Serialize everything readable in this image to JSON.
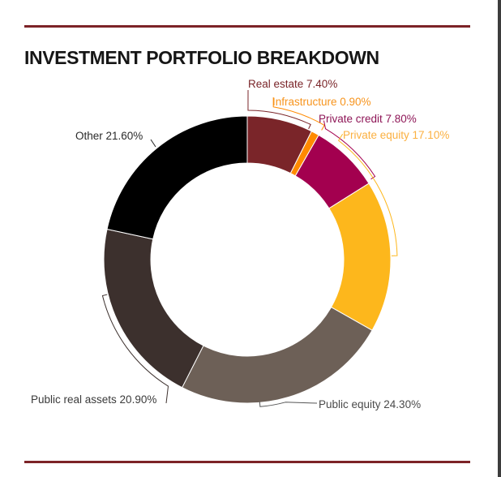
{
  "title": "INVESTMENT PORTFOLIO BREAKDOWN",
  "chart_data": {
    "type": "pie",
    "subtype": "donut",
    "title": "INVESTMENT PORTFOLIO BREAKDOWN",
    "unit": "%",
    "slices": [
      {
        "label": "Real estate",
        "value": 7.4,
        "text": "Real estate 7.40%",
        "color": "#7a2529",
        "label_color": "#7a2529"
      },
      {
        "label": "Infrastructure",
        "value": 0.9,
        "text": "Infrastructure 0.90%",
        "color": "#ff8a00",
        "label_color": "#f7941d"
      },
      {
        "label": "Private credit",
        "value": 7.8,
        "text": "Private credit 7.80%",
        "color": "#a3004f",
        "label_color": "#8e1657"
      },
      {
        "label": "Private equity",
        "value": 17.1,
        "text": "Private equity 17.10%",
        "color": "#fdb71c",
        "label_color": "#fbb040"
      },
      {
        "label": "Public equity",
        "value": 24.3,
        "text": "Public equity 24.30%",
        "color": "#6d6057",
        "label_color": "#4a4a4a"
      },
      {
        "label": "Public real assets",
        "value": 20.9,
        "text": "Public real assets 20.90%",
        "color": "#3c302d",
        "label_color": "#3a3a3a"
      },
      {
        "label": "Other",
        "value": 21.6,
        "text": "Other 21.60%",
        "color": "#000000",
        "label_color": "#2a2a2a"
      }
    ],
    "start_angle": "top",
    "direction": "clockwise"
  },
  "colors": {
    "rule": "#7c2327",
    "title": "#161616"
  }
}
